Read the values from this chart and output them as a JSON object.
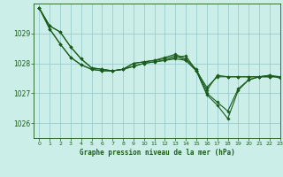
{
  "title": "Graphe pression niveau de la mer (hPa)",
  "bg_color": "#cceee8",
  "grid_color": "#99cccc",
  "line_color": "#1a5c1a",
  "xlim": [
    -0.5,
    23
  ],
  "ylim": [
    1025.5,
    1030.0
  ],
  "yticks": [
    1026,
    1027,
    1028,
    1029
  ],
  "xticks": [
    0,
    1,
    2,
    3,
    4,
    5,
    6,
    7,
    8,
    9,
    10,
    11,
    12,
    13,
    14,
    15,
    16,
    17,
    18,
    19,
    20,
    21,
    22,
    23
  ],
  "series": [
    [
      1029.85,
      1029.25,
      1029.05,
      1028.55,
      1028.15,
      1027.85,
      1027.8,
      1027.75,
      1027.8,
      1028.0,
      1028.05,
      1028.1,
      1028.15,
      1028.25,
      1028.1,
      1027.75,
      1027.2,
      1027.55,
      1027.55,
      1027.55,
      1027.55,
      1027.55,
      1027.55,
      1027.55
    ],
    [
      1029.85,
      1029.25,
      1029.05,
      1028.55,
      1028.15,
      1027.85,
      1027.8,
      1027.75,
      1027.8,
      1028.0,
      1028.05,
      1028.1,
      1028.2,
      1028.3,
      1028.15,
      1027.8,
      1027.1,
      1027.6,
      1027.55,
      1027.55,
      1027.55,
      1027.55,
      1027.55,
      1027.55
    ],
    [
      1029.85,
      1029.15,
      1028.65,
      1028.2,
      1027.95,
      1027.8,
      1027.75,
      1027.75,
      1027.8,
      1027.9,
      1028.0,
      1028.05,
      1028.1,
      1028.15,
      1028.1,
      1027.75,
      1027.0,
      1026.7,
      1026.4,
      1027.15,
      1027.45,
      1027.55,
      1027.6,
      1027.55
    ],
    [
      1029.85,
      1029.15,
      1028.65,
      1028.2,
      1027.95,
      1027.8,
      1027.75,
      1027.75,
      1027.8,
      1027.9,
      1028.0,
      1028.05,
      1028.1,
      1028.2,
      1028.25,
      1027.75,
      1026.95,
      1026.6,
      1026.15,
      1027.1,
      1027.45,
      1027.55,
      1027.6,
      1027.5
    ]
  ]
}
